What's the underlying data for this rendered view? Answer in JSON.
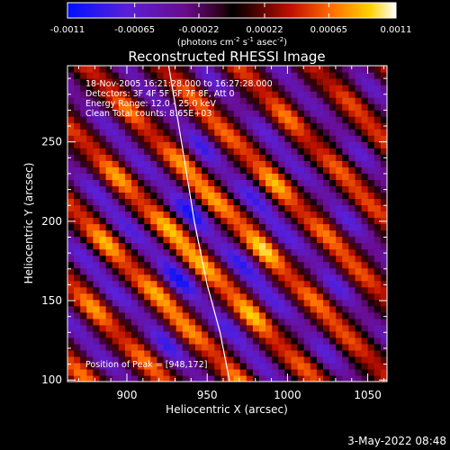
{
  "chart_data": {
    "type": "heatmap",
    "title": "Reconstructed RHESSI Image",
    "xlabel": "Heliocentric X (arcsec)",
    "ylabel": "Heliocentric Y (arcsec)",
    "xlim": [
      863,
      1062
    ],
    "ylim": [
      99,
      298
    ],
    "x_ticks": [
      900,
      950,
      1000,
      1050
    ],
    "y_ticks": [
      100,
      150,
      200,
      250
    ],
    "colorbar": {
      "min": -0.0011,
      "max": 0.0011,
      "ticks": [
        -0.0011,
        -0.00065,
        -0.00022,
        0.00022,
        0.00065,
        0.0011
      ],
      "tick_labels": [
        "-0.0011",
        "-0.00065",
        "-0.00022",
        "0.00022",
        "0.00065",
        "0.0011"
      ],
      "label_main": "(photons cm",
      "label_sup1": "-2",
      "label_mid1": " s",
      "label_sup2": "-1",
      "label_mid2": " asec",
      "label_sup3": "-2",
      "label_end": ")"
    },
    "annotations": [
      "18-Nov-2005 16:21:28.000 to 16:27:28.000",
      "Detectors: 3F 4F 5F 6F 7F 8F, Att 0",
      "Energy Range: 12.0 - 25.0 keV",
      "Clean    Total counts: 8.65E+03"
    ],
    "peak_label": "Position of Peak = [948,172]",
    "peak": [
      948,
      172
    ],
    "limb_curve": [
      [
        926,
        298
      ],
      [
        934,
        250
      ],
      [
        942,
        200
      ],
      [
        950,
        160
      ],
      [
        958,
        130
      ],
      [
        964,
        99
      ]
    ],
    "grid": false,
    "legend": "none"
  },
  "timestamp": "3-May-2022 08:48"
}
